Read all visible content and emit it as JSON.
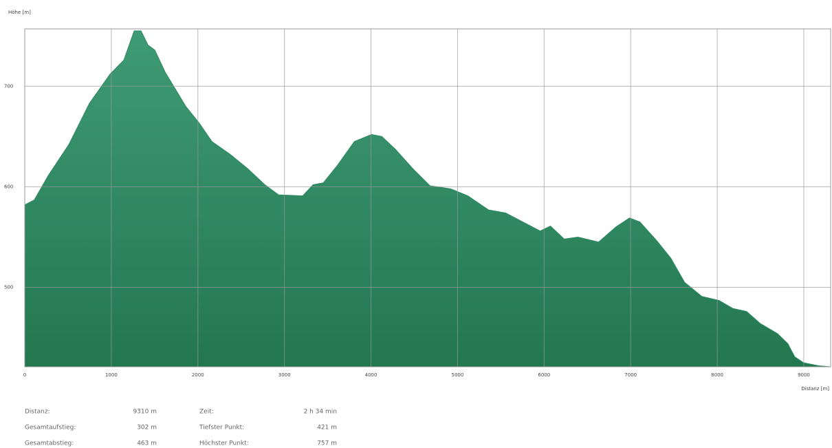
{
  "chart_data": {
    "type": "area",
    "y_label": "Höhe [m]",
    "x_label": "Distanz [m]",
    "x": [
      0,
      111,
      270,
      509,
      747,
      986,
      1145,
      1264,
      1343,
      1423,
      1502,
      1622,
      1741,
      1860,
      2019,
      2162,
      2377,
      2576,
      2774,
      2933,
      3211,
      3331,
      3450,
      3609,
      3808,
      4006,
      4125,
      4285,
      4483,
      4682,
      4920,
      5119,
      5358,
      5556,
      5755,
      5954,
      6073,
      6232,
      6391,
      6629,
      6828,
      6987,
      7107,
      7305,
      7464,
      7623,
      7822,
      8021,
      8180,
      8339,
      8498,
      8696,
      8816,
      8895,
      8998,
      9173,
      9310
    ],
    "values": [
      582,
      587,
      611,
      642,
      683,
      712,
      726,
      755,
      755,
      741,
      736,
      714,
      697,
      680,
      663,
      645,
      632,
      618,
      602,
      592,
      591,
      602,
      604,
      621,
      645,
      652,
      650,
      637,
      618,
      601,
      598,
      591,
      577,
      574,
      565,
      556,
      561,
      548,
      550,
      545,
      560,
      569,
      565,
      546,
      529,
      505,
      491,
      487,
      479,
      476,
      464,
      454,
      444,
      431,
      425,
      422,
      421
    ],
    "color": "#2f8a62",
    "xlim": [
      0,
      9310
    ],
    "xticks": [
      0,
      1000,
      2000,
      3000,
      4000,
      5000,
      6000,
      7000,
      8000,
      9000
    ],
    "ylim": [
      421,
      757
    ],
    "yticks": [
      500,
      600,
      700
    ],
    "grid": true
  },
  "stats": [
    {
      "label": "Distanz:",
      "value": "9310 m"
    },
    {
      "label": "Zeit:",
      "value": "2 h 34 min"
    },
    {
      "label": "Gesamtaufstieg:",
      "value": "302 m"
    },
    {
      "label": "Tiefster Punkt:",
      "value": "421 m"
    },
    {
      "label": "Gesamtabstieg:",
      "value": "463 m"
    },
    {
      "label": "Höchster Punkt:",
      "value": "757 m"
    }
  ]
}
